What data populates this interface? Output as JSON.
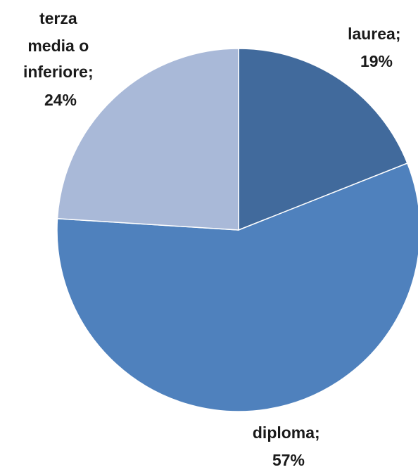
{
  "chart_data": {
    "type": "pie",
    "title": "",
    "start_angle_deg": 0,
    "direction": "clockwise",
    "slices": [
      {
        "label": "laurea;",
        "percent_label": "19%",
        "value": 19,
        "color": "#416a9c"
      },
      {
        "label": "diploma;",
        "percent_label": "57%",
        "value": 57,
        "color": "#4f81bd"
      },
      {
        "label": "terza media o inferiore;",
        "percent_label": "24%",
        "value": 24,
        "color": "#a9b9d8"
      }
    ],
    "legend": "none"
  }
}
